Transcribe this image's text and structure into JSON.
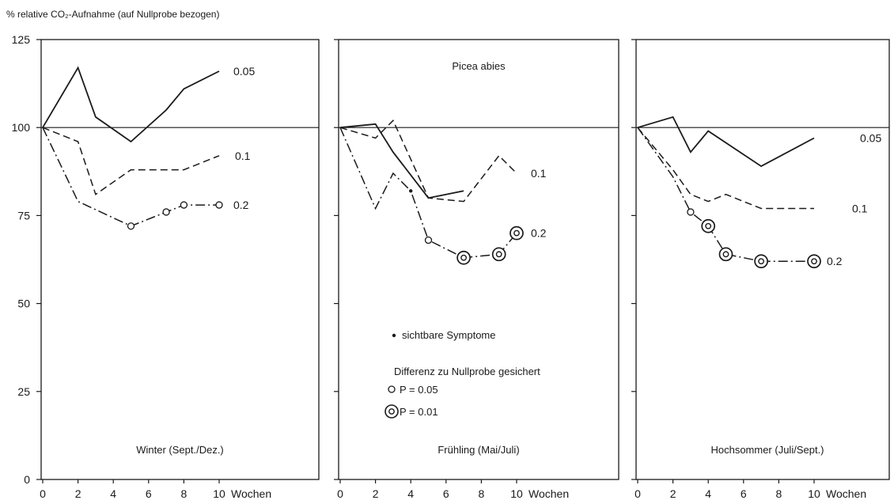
{
  "y_axis_label": "% relative CO₂-Aufnahme (auf Nullprobe bezogen)",
  "species_label": "Picea abies",
  "x_unit_label": "Wochen",
  "legend": {
    "symptoms": "sichtbare Symptome",
    "significance_title": "Differenz zu Nullprobe gesichert",
    "p005": "P = 0.05",
    "p001": "P = 0.01"
  },
  "chart_data": [
    {
      "type": "line",
      "title": "Winter (Sept./Dez.)",
      "xlabel": "Wochen",
      "ylabel": "% relative CO₂-Aufnahme (auf Nullprobe bezogen)",
      "xlim": [
        0,
        10
      ],
      "ylim": [
        0,
        125
      ],
      "x_ticks": [
        0,
        2,
        4,
        6,
        8,
        10
      ],
      "y_ticks": [
        0,
        25,
        50,
        75,
        100,
        125
      ],
      "reference_line": 100,
      "series": [
        {
          "name": "0.05",
          "style": "solid",
          "x": [
            0,
            2,
            3,
            5,
            7,
            8,
            10
          ],
          "y": [
            100,
            117,
            103,
            96,
            105,
            111,
            116
          ]
        },
        {
          "name": "0.1",
          "style": "dashed",
          "x": [
            0,
            2,
            3,
            5,
            8,
            10
          ],
          "y": [
            100,
            96,
            81,
            88,
            88,
            92
          ]
        },
        {
          "name": "0.2",
          "style": "dashdot",
          "x": [
            0,
            2,
            5,
            7,
            8,
            10
          ],
          "y": [
            100,
            79,
            72,
            76,
            78,
            78
          ],
          "markers": [
            null,
            null,
            "p005",
            "p005",
            "p005",
            "p005"
          ]
        }
      ]
    },
    {
      "type": "line",
      "title": "Frühling (Mai/Juli)",
      "xlabel": "Wochen",
      "xlim": [
        0,
        10
      ],
      "ylim": [
        0,
        125
      ],
      "x_ticks": [
        0,
        2,
        4,
        6,
        8,
        10
      ],
      "reference_line": 100,
      "series": [
        {
          "name": "",
          "style": "solid",
          "x": [
            0,
            2,
            3,
            5,
            7
          ],
          "y": [
            100,
            101,
            93,
            80,
            82
          ]
        },
        {
          "name": "0.1",
          "style": "dashed",
          "x": [
            0,
            2,
            3,
            5,
            7,
            9,
            10
          ],
          "y": [
            100,
            97,
            102,
            80,
            79,
            92,
            87
          ]
        },
        {
          "name": "0.2",
          "style": "dashdot",
          "x": [
            0,
            2,
            3,
            4,
            5,
            7,
            9,
            10
          ],
          "y": [
            100,
            77,
            87,
            82,
            68,
            63,
            64,
            70
          ],
          "markers": [
            null,
            null,
            null,
            "symptom",
            "p005",
            "p001",
            "p001",
            "p001"
          ]
        }
      ]
    },
    {
      "type": "line",
      "title": "Hochsommer (Juli/Sept.)",
      "xlabel": "Wochen",
      "xlim": [
        0,
        10
      ],
      "ylim": [
        0,
        125
      ],
      "x_ticks": [
        0,
        2,
        4,
        6,
        8,
        10
      ],
      "reference_line": 100,
      "series": [
        {
          "name": "0.05",
          "style": "solid",
          "x": [
            0,
            2,
            3,
            4,
            7,
            10
          ],
          "y": [
            100,
            103,
            93,
            99,
            89,
            97
          ]
        },
        {
          "name": "0.1",
          "style": "dashed",
          "x": [
            0,
            2,
            3,
            4,
            5,
            7,
            10
          ],
          "y": [
            100,
            88,
            81,
            79,
            81,
            77,
            77
          ]
        },
        {
          "name": "0.2",
          "style": "dashdot",
          "x": [
            0,
            2,
            3,
            4,
            5,
            7,
            10
          ],
          "y": [
            100,
            86,
            76,
            72,
            64,
            62,
            62
          ],
          "markers": [
            null,
            null,
            "p005",
            "p001",
            "p001",
            "p001",
            "p001"
          ]
        }
      ]
    }
  ]
}
